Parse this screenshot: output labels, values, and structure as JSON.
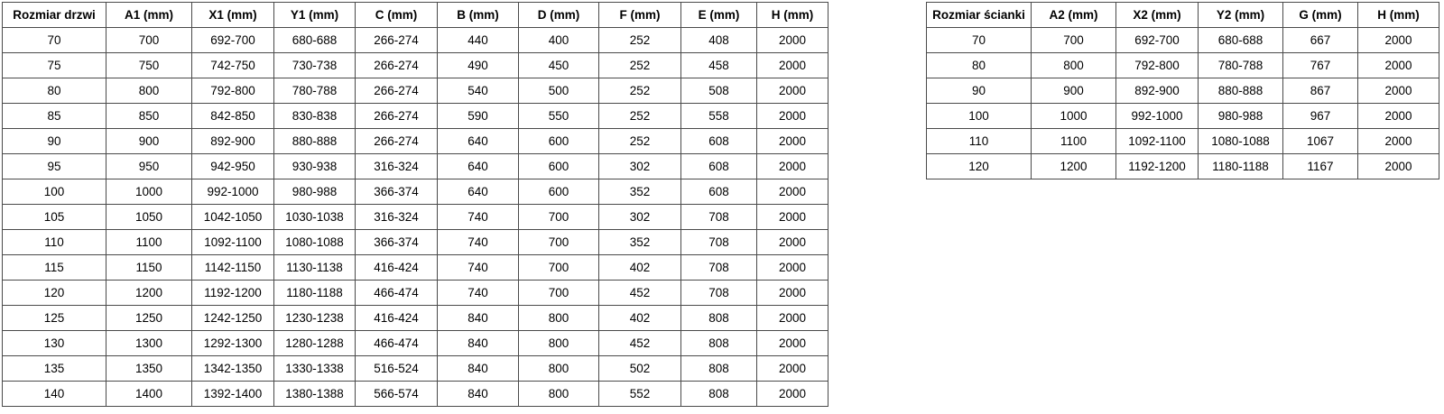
{
  "colors": {
    "background": "#ffffff",
    "border": "#4a4a4a",
    "text": "#000000"
  },
  "tables": [
    {
      "name": "door-sizes",
      "columns": [
        "Rozmiar drzwi",
        "A1 (mm)",
        "X1 (mm)",
        "Y1 (mm)",
        "C (mm)",
        "B (mm)",
        "D (mm)",
        "F (mm)",
        "E (mm)",
        "H (mm)"
      ],
      "rows": [
        [
          "70",
          "700",
          "692-700",
          "680-688",
          "266-274",
          "440",
          "400",
          "252",
          "408",
          "2000"
        ],
        [
          "75",
          "750",
          "742-750",
          "730-738",
          "266-274",
          "490",
          "450",
          "252",
          "458",
          "2000"
        ],
        [
          "80",
          "800",
          "792-800",
          "780-788",
          "266-274",
          "540",
          "500",
          "252",
          "508",
          "2000"
        ],
        [
          "85",
          "850",
          "842-850",
          "830-838",
          "266-274",
          "590",
          "550",
          "252",
          "558",
          "2000"
        ],
        [
          "90",
          "900",
          "892-900",
          "880-888",
          "266-274",
          "640",
          "600",
          "252",
          "608",
          "2000"
        ],
        [
          "95",
          "950",
          "942-950",
          "930-938",
          "316-324",
          "640",
          "600",
          "302",
          "608",
          "2000"
        ],
        [
          "100",
          "1000",
          "992-1000",
          "980-988",
          "366-374",
          "640",
          "600",
          "352",
          "608",
          "2000"
        ],
        [
          "105",
          "1050",
          "1042-1050",
          "1030-1038",
          "316-324",
          "740",
          "700",
          "302",
          "708",
          "2000"
        ],
        [
          "110",
          "1100",
          "1092-1100",
          "1080-1088",
          "366-374",
          "740",
          "700",
          "352",
          "708",
          "2000"
        ],
        [
          "115",
          "1150",
          "1142-1150",
          "1130-1138",
          "416-424",
          "740",
          "700",
          "402",
          "708",
          "2000"
        ],
        [
          "120",
          "1200",
          "1192-1200",
          "1180-1188",
          "466-474",
          "740",
          "700",
          "452",
          "708",
          "2000"
        ],
        [
          "125",
          "1250",
          "1242-1250",
          "1230-1238",
          "416-424",
          "840",
          "800",
          "402",
          "808",
          "2000"
        ],
        [
          "130",
          "1300",
          "1292-1300",
          "1280-1288",
          "466-474",
          "840",
          "800",
          "452",
          "808",
          "2000"
        ],
        [
          "135",
          "1350",
          "1342-1350",
          "1330-1338",
          "516-524",
          "840",
          "800",
          "502",
          "808",
          "2000"
        ],
        [
          "140",
          "1400",
          "1392-1400",
          "1380-1388",
          "566-574",
          "840",
          "800",
          "552",
          "808",
          "2000"
        ]
      ]
    },
    {
      "name": "wall-sizes",
      "columns": [
        "Rozmiar ścianki",
        "A2 (mm)",
        "X2 (mm)",
        "Y2 (mm)",
        "G (mm)",
        "H (mm)"
      ],
      "rows": [
        [
          "70",
          "700",
          "692-700",
          "680-688",
          "667",
          "2000"
        ],
        [
          "80",
          "800",
          "792-800",
          "780-788",
          "767",
          "2000"
        ],
        [
          "90",
          "900",
          "892-900",
          "880-888",
          "867",
          "2000"
        ],
        [
          "100",
          "1000",
          "992-1000",
          "980-988",
          "967",
          "2000"
        ],
        [
          "110",
          "1100",
          "1092-1100",
          "1080-1088",
          "1067",
          "2000"
        ],
        [
          "120",
          "1200",
          "1192-1200",
          "1180-1188",
          "1167",
          "2000"
        ]
      ]
    }
  ]
}
